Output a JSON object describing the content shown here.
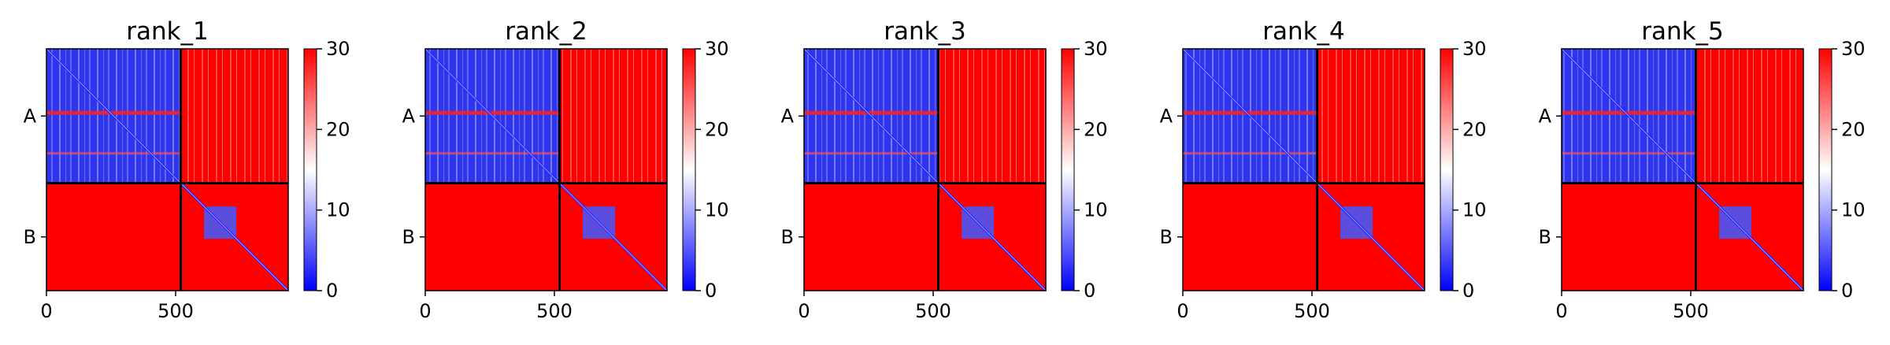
{
  "chart_data": [
    {
      "type": "heatmap",
      "title": "rank_1",
      "row_labels": [
        "A",
        "B"
      ],
      "x_ticks": [
        0,
        500
      ],
      "x_range": [
        0,
        936
      ],
      "chain_boundary": 520,
      "colorbar": {
        "colormap": "bwr",
        "range": [
          0,
          30
        ],
        "ticks": [
          0,
          10,
          20,
          30
        ]
      }
    },
    {
      "type": "heatmap",
      "title": "rank_2",
      "row_labels": [
        "A",
        "B"
      ],
      "x_ticks": [
        0,
        500
      ],
      "x_range": [
        0,
        936
      ],
      "chain_boundary": 520,
      "colorbar": {
        "colormap": "bwr",
        "range": [
          0,
          30
        ],
        "ticks": [
          0,
          10,
          20,
          30
        ]
      }
    },
    {
      "type": "heatmap",
      "title": "rank_3",
      "row_labels": [
        "A",
        "B"
      ],
      "x_ticks": [
        0,
        500
      ],
      "x_range": [
        0,
        936
      ],
      "chain_boundary": 520,
      "colorbar": {
        "colormap": "bwr",
        "range": [
          0,
          30
        ],
        "ticks": [
          0,
          10,
          20,
          30
        ]
      }
    },
    {
      "type": "heatmap",
      "title": "rank_4",
      "row_labels": [
        "A",
        "B"
      ],
      "x_ticks": [
        0,
        500
      ],
      "x_range": [
        0,
        936
      ],
      "chain_boundary": 520,
      "colorbar": {
        "colormap": "bwr",
        "range": [
          0,
          30
        ],
        "ticks": [
          0,
          10,
          20,
          30
        ]
      }
    },
    {
      "type": "heatmap",
      "title": "rank_5",
      "row_labels": [
        "A",
        "B"
      ],
      "x_ticks": [
        0,
        500
      ],
      "x_range": [
        0,
        936
      ],
      "chain_boundary": 520,
      "colorbar": {
        "colormap": "bwr",
        "range": [
          0,
          30
        ],
        "ticks": [
          0,
          10,
          20,
          30
        ]
      }
    }
  ]
}
